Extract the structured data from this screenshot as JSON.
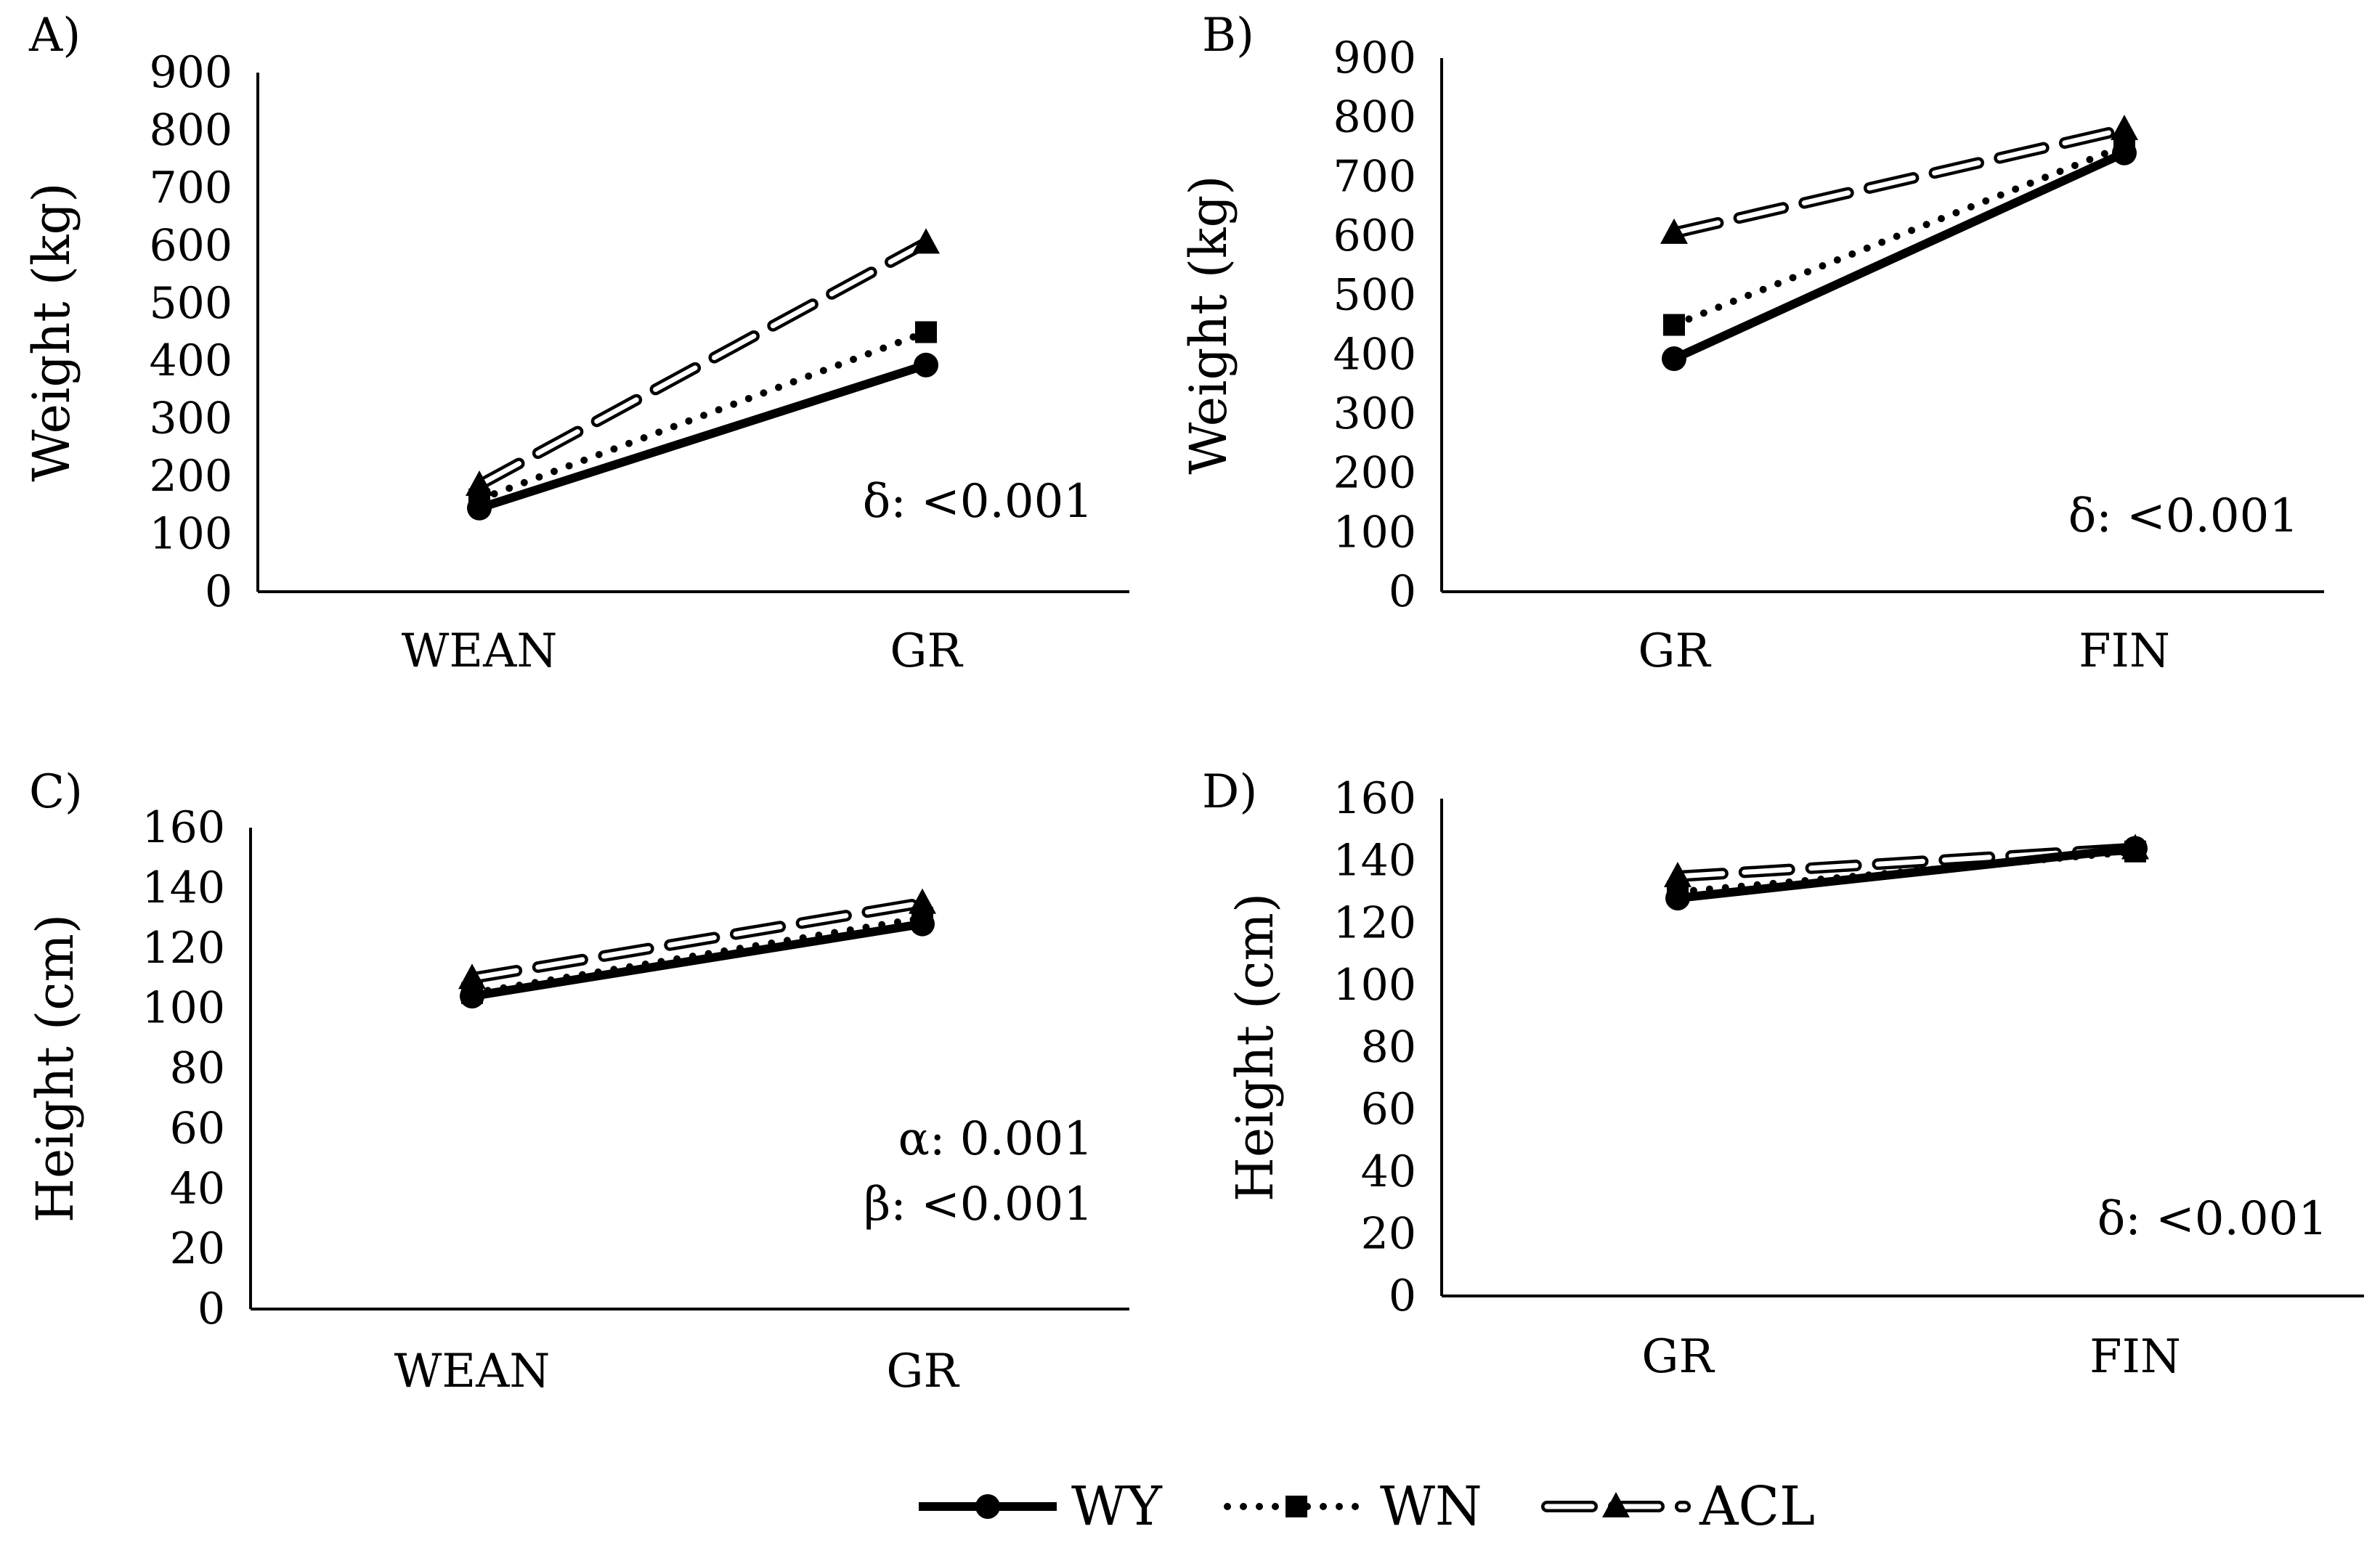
{
  "colors": {
    "line": "#000000",
    "acl_fill": "#ffffff",
    "background": "#ffffff"
  },
  "legend": [
    {
      "series": "WY",
      "style": "solid",
      "marker": "circle"
    },
    {
      "series": "WN",
      "style": "dotted",
      "marker": "square"
    },
    {
      "series": "ACL",
      "style": "dashed-double",
      "marker": "triangle"
    }
  ],
  "chart_data": [
    {
      "panel": "A)",
      "type": "line",
      "categories": [
        "WEAN",
        "GR"
      ],
      "ylabel": "Weight (kg)",
      "ylim": [
        0,
        900
      ],
      "yticks": [
        0,
        100,
        200,
        300,
        400,
        500,
        600,
        700,
        800,
        900
      ],
      "grid": false,
      "series": [
        {
          "name": "WY",
          "values": [
            145,
            393
          ]
        },
        {
          "name": "WN",
          "values": [
            160,
            450
          ]
        },
        {
          "name": "ACL",
          "values": [
            185,
            605
          ]
        }
      ],
      "annotations": [
        "δ: <0.001"
      ]
    },
    {
      "panel": "B)",
      "type": "line",
      "categories": [
        "GR",
        "FIN"
      ],
      "ylabel": "Weight (kg)",
      "ylim": [
        0,
        900
      ],
      "yticks": [
        0,
        100,
        200,
        300,
        400,
        500,
        600,
        700,
        800,
        900
      ],
      "grid": false,
      "series": [
        {
          "name": "WY",
          "values": [
            393,
            740
          ]
        },
        {
          "name": "WN",
          "values": [
            450,
            752
          ]
        },
        {
          "name": "ACL",
          "values": [
            605,
            780
          ]
        }
      ],
      "annotations": [
        "δ: <0.001"
      ]
    },
    {
      "panel": "C)",
      "type": "line",
      "categories": [
        "WEAN",
        "GR"
      ],
      "ylabel": "Height (cm)",
      "ylim": [
        0,
        160
      ],
      "yticks": [
        0,
        20,
        40,
        60,
        80,
        100,
        120,
        140,
        160
      ],
      "grid": false,
      "series": [
        {
          "name": "WY",
          "values": [
            104,
            128
          ]
        },
        {
          "name": "WN",
          "values": [
            105,
            130
          ]
        },
        {
          "name": "ACL",
          "values": [
            110,
            135
          ]
        }
      ],
      "annotations": [
        "α: 0.001",
        "β: <0.001"
      ]
    },
    {
      "panel": "D)",
      "type": "line",
      "categories": [
        "GR",
        "FIN"
      ],
      "ylabel": "Height (cm)",
      "ylim": [
        0,
        160
      ],
      "yticks": [
        0,
        20,
        40,
        60,
        80,
        100,
        120,
        140,
        160
      ],
      "grid": false,
      "series": [
        {
          "name": "WY",
          "values": [
            128,
            144
          ]
        },
        {
          "name": "WN",
          "values": [
            130,
            143
          ]
        },
        {
          "name": "ACL",
          "values": [
            135,
            144
          ]
        }
      ],
      "annotations": [
        "δ: <0.001"
      ]
    }
  ]
}
